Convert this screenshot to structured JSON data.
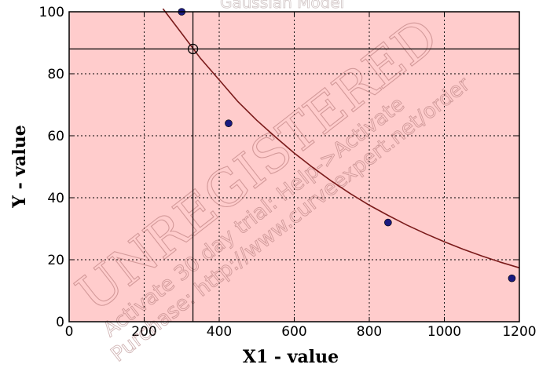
{
  "chart_data": {
    "type": "scatter",
    "title": "Gaussian Model",
    "xlabel": "X1 - value",
    "ylabel": "Y - value",
    "xlim": [
      0,
      1200
    ],
    "ylim": [
      0,
      100
    ],
    "x_ticks": [
      0,
      200,
      400,
      600,
      800,
      1000,
      1200
    ],
    "y_ticks": [
      0,
      20,
      40,
      60,
      80,
      100
    ],
    "grid": true,
    "background_color": "#ffcccc",
    "point_color": "#1a1a80",
    "curve_color": "#7a1a1a",
    "points": [
      {
        "x": 300,
        "y": 100
      },
      {
        "x": 425,
        "y": 64
      },
      {
        "x": 850,
        "y": 32
      },
      {
        "x": 1180,
        "y": 14
      }
    ],
    "fitted_curve": {
      "x": [
        250,
        300,
        350,
        400,
        450,
        500,
        550,
        600,
        650,
        700,
        750,
        800,
        850,
        900,
        950,
        1000,
        1050,
        1100,
        1150,
        1200
      ],
      "y": [
        101,
        93,
        85,
        78,
        71,
        65,
        59.6,
        54.4,
        49.7,
        45.3,
        41.3,
        37.6,
        34.3,
        31.2,
        28.4,
        25.8,
        23.4,
        21.2,
        19.2,
        17.4
      ]
    },
    "crosshair": {
      "x": 330,
      "y": 88
    }
  },
  "watermark": {
    "main": "UNREGISTERED",
    "line1": "Activate 30 day trial: Help->Activate",
    "line2": "Purchase: http://www.curveexpert.net/order",
    "top": "Gaussian Model"
  }
}
